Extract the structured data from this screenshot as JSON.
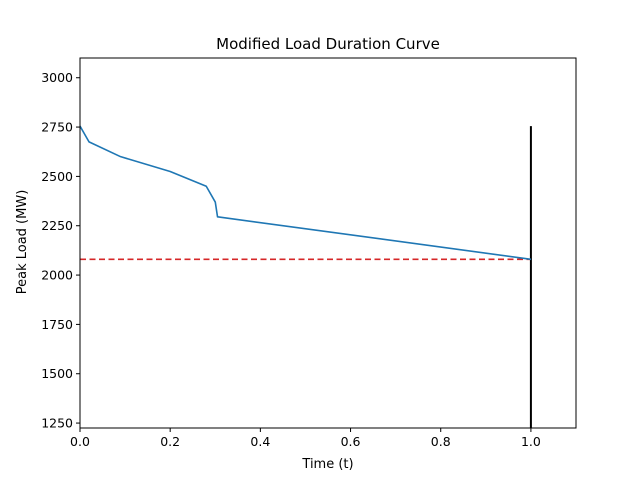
{
  "chart_data": {
    "type": "line",
    "title": "Modified Load Duration Curve",
    "xlabel": "Time (t)",
    "ylabel": "Peak Load (MW)",
    "xlim": [
      0,
      1.1
    ],
    "ylim": [
      1225,
      3100
    ],
    "xticks": [
      0.0,
      0.2,
      0.4,
      0.6,
      0.8,
      1.0
    ],
    "xtick_labels": [
      "0.0",
      "0.2",
      "0.4",
      "0.6",
      "0.8",
      "1.0"
    ],
    "yticks": [
      1250,
      1500,
      1750,
      2000,
      2250,
      2500,
      2750,
      3000
    ],
    "ytick_labels": [
      "1250",
      "1500",
      "1750",
      "2000",
      "2250",
      "2500",
      "2750",
      "3000"
    ],
    "grid": false,
    "series": [
      {
        "kind": "line",
        "color": "#1f77b4",
        "x": [
          0.0,
          0.02,
          0.09,
          0.2,
          0.28,
          0.3,
          0.305,
          1.0
        ],
        "y": [
          2755,
          2675,
          2600,
          2525,
          2450,
          2370,
          2295,
          2080
        ]
      }
    ],
    "reference_lines": [
      {
        "kind": "horizontal",
        "style": "dashed",
        "color": "#d62728",
        "y": 2080,
        "x": [
          0.0,
          1.0
        ]
      },
      {
        "kind": "vertical",
        "style": "solid",
        "color": "#000000",
        "x": 1.0,
        "y": [
          1225,
          2755
        ]
      }
    ]
  }
}
